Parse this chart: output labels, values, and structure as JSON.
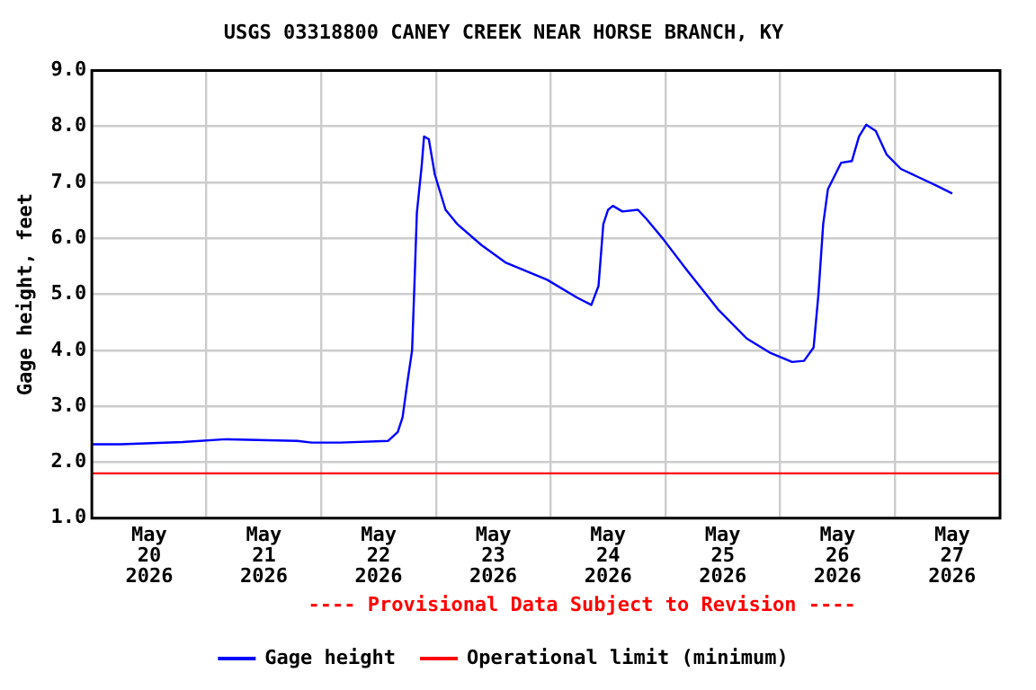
{
  "chart_data": {
    "type": "line",
    "title": "USGS 03318800 CANEY CREEK NEAR HORSE BRANCH, KY",
    "ylabel": "Gage height, feet",
    "annotations": [
      "---- Provisional Data Subject to Revision ----"
    ],
    "xlim": [
      "2026-05-20T00:00",
      "2026-05-27T22:00"
    ],
    "xticks": [
      {
        "value": "2026-05-20T12:00",
        "label": "May 20 2026"
      },
      {
        "value": "2026-05-21T00:00",
        "label": null
      },
      {
        "value": "2026-05-21T12:00",
        "label": "May 21 2026"
      },
      {
        "value": "2026-05-22T00:00",
        "label": null
      },
      {
        "value": "2026-05-22T12:00",
        "label": "May 22 2026"
      },
      {
        "value": "2026-05-23T00:00",
        "label": null
      },
      {
        "value": "2026-05-23T12:00",
        "label": "May 23 2026"
      },
      {
        "value": "2026-05-24T00:00",
        "label": null
      },
      {
        "value": "2026-05-24T12:00",
        "label": "May 24 2026"
      },
      {
        "value": "2026-05-25T00:00",
        "label": null
      },
      {
        "value": "2026-05-25T12:00",
        "label": "May 25 2026"
      },
      {
        "value": "2026-05-26T00:00",
        "label": null
      },
      {
        "value": "2026-05-26T12:00",
        "label": "May 26 2026"
      },
      {
        "value": "2026-05-27T00:00",
        "label": null
      },
      {
        "value": "2026-05-27T12:00",
        "label": "May 27 2026"
      }
    ],
    "ylim": [
      1,
      9
    ],
    "yticks": [
      {
        "value": 1,
        "label": "1.0"
      },
      {
        "value": 2,
        "label": "2.0"
      },
      {
        "value": 3,
        "label": "3.0"
      },
      {
        "value": 4,
        "label": "4.0"
      },
      {
        "value": 5,
        "label": "5.0"
      },
      {
        "value": 6,
        "label": "6.0"
      },
      {
        "value": 7,
        "label": "7.0"
      },
      {
        "value": 8,
        "label": "8.0"
      },
      {
        "value": 9,
        "label": "9.0"
      }
    ],
    "grid": true,
    "legend": "bottom",
    "marker": "none",
    "line_style": "solid",
    "ref_lines": [
      {
        "axis": "y",
        "value": 1.8,
        "label": "Operational limit (minimum)",
        "color": "#ff0000"
      }
    ],
    "series": [
      {
        "name": "Gage height",
        "color": "#0000ff",
        "x": [
          "2026-05-20T00:00",
          "2026-05-20T06:00",
          "2026-05-20T19:00",
          "2026-05-21T04:00",
          "2026-05-21T19:00",
          "2026-05-21T22:00",
          "2026-05-22T04:00",
          "2026-05-22T14:00",
          "2026-05-22T16:00",
          "2026-05-22T17:00",
          "2026-05-22T18:00",
          "2026-05-22T19:00",
          "2026-05-22T19:30",
          "2026-05-22T20:00",
          "2026-05-22T21:00",
          "2026-05-22T21:30",
          "2026-05-22T22:30",
          "2026-05-22T23:45",
          "2026-05-23T02:00",
          "2026-05-23T04:30",
          "2026-05-23T09:30",
          "2026-05-23T14:30",
          "2026-05-23T23:15",
          "2026-05-24T05:30",
          "2026-05-24T08:30",
          "2026-05-24T10:00",
          "2026-05-24T11:00",
          "2026-05-24T12:00",
          "2026-05-24T13:00",
          "2026-05-24T15:00",
          "2026-05-24T18:15",
          "2026-05-24T20:00",
          "2026-05-24T23:30",
          "2026-05-25T04:30",
          "2026-05-25T11:00",
          "2026-05-25T17:00",
          "2026-05-25T22:00",
          "2026-05-26T02:30",
          "2026-05-26T05:00",
          "2026-05-26T07:00",
          "2026-05-26T08:00",
          "2026-05-26T09:00",
          "2026-05-26T10:00",
          "2026-05-26T12:45",
          "2026-05-26T15:00",
          "2026-05-26T16:30",
          "2026-05-26T18:00",
          "2026-05-26T20:00",
          "2026-05-26T22:15",
          "2026-05-27T01:15",
          "2026-05-27T05:45",
          "2026-05-27T09:00",
          "2026-05-27T12:00"
        ],
        "values": [
          2.32,
          2.32,
          2.36,
          2.41,
          2.38,
          2.35,
          2.35,
          2.38,
          2.54,
          2.8,
          3.42,
          4.0,
          5.2,
          6.46,
          7.29,
          7.82,
          7.77,
          7.14,
          6.51,
          6.25,
          5.88,
          5.57,
          5.26,
          4.94,
          4.81,
          5.15,
          6.25,
          6.51,
          6.58,
          6.48,
          6.51,
          6.35,
          5.99,
          5.43,
          4.73,
          4.21,
          3.95,
          3.79,
          3.81,
          4.05,
          4.99,
          6.25,
          6.88,
          7.35,
          7.38,
          7.82,
          8.03,
          7.92,
          7.5,
          7.24,
          7.06,
          6.93,
          6.8
        ]
      }
    ]
  }
}
